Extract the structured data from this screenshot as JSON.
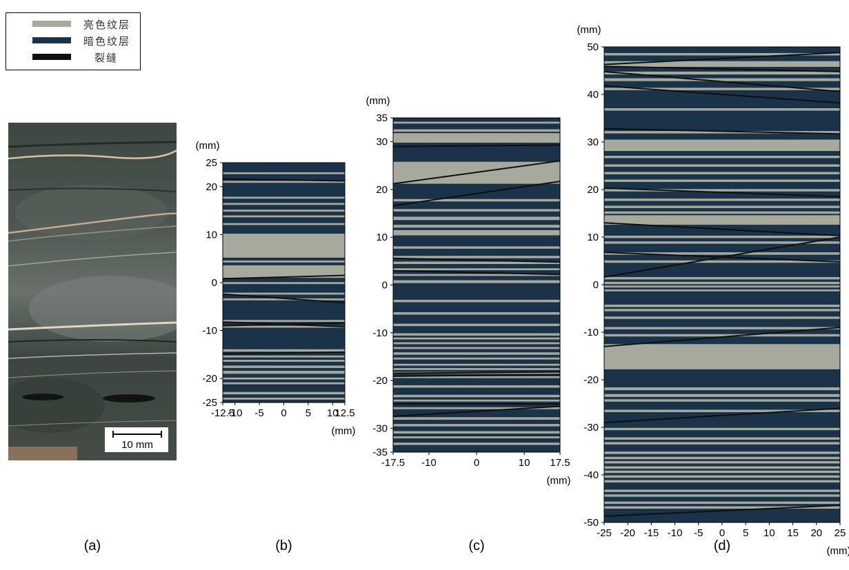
{
  "legend": {
    "items": [
      {
        "label": "亮色纹层",
        "color": "#a8a99d"
      },
      {
        "label": "暗色纹层",
        "color": "#1b3349"
      },
      {
        "label": "裂缝",
        "color": "#0f0f0f"
      }
    ]
  },
  "photo": {
    "scale_label": "10 mm"
  },
  "panels": [
    {
      "id": "b",
      "caption": "(b)",
      "unit_y": "(mm)",
      "unit_x": "(mm)",
      "x_range": [
        -12.5,
        12.5
      ],
      "y_range": [
        -25,
        25
      ],
      "x_ticks": [
        "-12.5",
        "-10",
        "-5",
        "0",
        "5",
        "10",
        "12.5"
      ],
      "x_tick_values": [
        -12.5,
        -10,
        -5,
        0,
        5,
        10,
        12.5
      ],
      "y_ticks": [
        "25",
        "20",
        "10",
        "0",
        "-10",
        "-20",
        "-25"
      ],
      "y_tick_values": [
        25,
        20,
        10,
        0,
        -10,
        -20,
        -25
      ],
      "light_bands": [
        [
          22.6,
          23
        ],
        [
          20.8,
          21.2
        ],
        [
          17.5,
          17.9
        ],
        [
          16.2,
          16.6
        ],
        [
          14.8,
          15.2
        ],
        [
          13.6,
          14
        ],
        [
          12,
          12.4
        ],
        [
          5.2,
          10.2
        ],
        [
          4.2,
          4.6
        ],
        [
          1,
          3.6
        ],
        [
          -0.3,
          0.1
        ],
        [
          -2.5,
          -2.1
        ],
        [
          -3.7,
          -3.3
        ],
        [
          -8.2,
          -7.8
        ],
        [
          -9.4,
          -9
        ],
        [
          -14.4,
          -13.9
        ],
        [
          -15.6,
          -15.2
        ],
        [
          -16.5,
          -16.1
        ],
        [
          -17.8,
          -17.3
        ],
        [
          -19,
          -18.4
        ],
        [
          -20.2,
          -19.8
        ],
        [
          -21.2,
          -20.8
        ],
        [
          -23.3,
          -22.8
        ],
        [
          -24.4,
          -24
        ]
      ],
      "cracks": [
        [
          21.6,
          21.2
        ],
        [
          0.8,
          1.5
        ],
        [
          -2.4,
          -4.2
        ],
        [
          -8.2,
          -9.2
        ],
        [
          -9,
          -8.4
        ],
        [
          -14.8,
          -14.5
        ]
      ]
    },
    {
      "id": "c",
      "caption": "(c)",
      "unit_y": "(mm)",
      "unit_x": "(mm)",
      "x_range": [
        -17.5,
        17.5
      ],
      "y_range": [
        -35,
        35
      ],
      "x_ticks": [
        "-17.5",
        "-10",
        "0",
        "10",
        "17.5"
      ],
      "x_tick_values": [
        -17.5,
        -10,
        0,
        10,
        17.5
      ],
      "y_ticks": [
        "35",
        "30",
        "20",
        "10",
        "0",
        "-10",
        "-20",
        "-30",
        "-35"
      ],
      "y_tick_values": [
        35,
        30,
        20,
        10,
        0,
        -10,
        -20,
        -30,
        -35
      ],
      "light_bands": [
        [
          33.8,
          34.2
        ],
        [
          32.1,
          32.6
        ],
        [
          29.8,
          31.8
        ],
        [
          21.2,
          25.8
        ],
        [
          17.5,
          18
        ],
        [
          15.4,
          15.9
        ],
        [
          13.6,
          14.3
        ],
        [
          12,
          12.6
        ],
        [
          10.4,
          11.5
        ],
        [
          7.6,
          8.1
        ],
        [
          5.6,
          6.1
        ],
        [
          4.4,
          4.9
        ],
        [
          3.1,
          3.5
        ],
        [
          1.9,
          2.3
        ],
        [
          0.4,
          1
        ],
        [
          -3.6,
          -3.1
        ],
        [
          -6.2,
          -5.7
        ],
        [
          -8.6,
          -8.1
        ],
        [
          -10.6,
          -10.1
        ],
        [
          -11.4,
          -11
        ],
        [
          -12.4,
          -12
        ],
        [
          -13.4,
          -13
        ],
        [
          -14.6,
          -14.1
        ],
        [
          -15.6,
          -15.2
        ],
        [
          -16.9,
          -16.5
        ],
        [
          -17.8,
          -17.4
        ],
        [
          -18.6,
          -18.2
        ],
        [
          -19.5,
          -19.1
        ],
        [
          -21.5,
          -21
        ],
        [
          -23.5,
          -23
        ],
        [
          -24.4,
          -24
        ],
        [
          -26,
          -25.6
        ],
        [
          -28.2,
          -27.7
        ],
        [
          -29.6,
          -29.1
        ],
        [
          -31.1,
          -30.6
        ],
        [
          -32.1,
          -31.7
        ],
        [
          -33.5,
          -33
        ]
      ],
      "cracks": [
        [
          29,
          29.3
        ],
        [
          21.2,
          26
        ],
        [
          16.6,
          21.7
        ],
        [
          5.6,
          4.8
        ],
        [
          3,
          2.2
        ],
        [
          -18.5,
          -18.2
        ],
        [
          -19.1,
          -18.8
        ],
        [
          -24.9,
          -24.9
        ],
        [
          -27.5,
          -25.4
        ]
      ]
    },
    {
      "id": "d",
      "caption": "(d)",
      "unit_y": "(mm)",
      "unit_x": "(mm)",
      "x_range": [
        -25,
        25
      ],
      "y_range": [
        -50,
        50
      ],
      "x_ticks": [
        "-25",
        "-20",
        "-15",
        "-10",
        "-5",
        "0",
        "5",
        "10",
        "15",
        "20",
        "25"
      ],
      "x_tick_values": [
        -25,
        -20,
        -15,
        -10,
        -5,
        0,
        5,
        10,
        15,
        20,
        25
      ],
      "y_ticks": [
        "50",
        "40",
        "30",
        "20",
        "10",
        "0",
        "-10",
        "-20",
        "-30",
        "-40",
        "-50"
      ],
      "y_tick_values": [
        50,
        40,
        30,
        20,
        10,
        0,
        -10,
        -20,
        -30,
        -40,
        -50
      ],
      "light_bands": [
        [
          48.2,
          48.7
        ],
        [
          45.8,
          47
        ],
        [
          44.2,
          44.8
        ],
        [
          42.8,
          43.4
        ],
        [
          40.9,
          41.4
        ],
        [
          36.6,
          37.1
        ],
        [
          31.8,
          32.3
        ],
        [
          28.1,
          30.5
        ],
        [
          26.6,
          27.1
        ],
        [
          24.8,
          25.3
        ],
        [
          23.2,
          23.7
        ],
        [
          21.6,
          22.1
        ],
        [
          19.6,
          20.1
        ],
        [
          17.6,
          18.1
        ],
        [
          16.1,
          16.6
        ],
        [
          14.9,
          15.4
        ],
        [
          12.6,
          14.6
        ],
        [
          9.8,
          10.3
        ],
        [
          8.6,
          9.1
        ],
        [
          6.3,
          6.8
        ],
        [
          4.6,
          5.1
        ],
        [
          1.1,
          1.6
        ],
        [
          0.1,
          0.6
        ],
        [
          -0.6,
          -0.2
        ],
        [
          -1.4,
          -1
        ],
        [
          -4.7,
          -4.2
        ],
        [
          -5.6,
          -5.1
        ],
        [
          -7.2,
          -6.7
        ],
        [
          -9.4,
          -8.9
        ],
        [
          -10.9,
          -10.4
        ],
        [
          -12.5,
          -17.8
        ],
        [
          -22.2,
          -21.6
        ],
        [
          -23.6,
          -23
        ],
        [
          -24.6,
          -24.1
        ],
        [
          -26.8,
          -26.3
        ],
        [
          -30.6,
          -30.1
        ],
        [
          -32.6,
          -32.1
        ],
        [
          -33.6,
          -33.1
        ],
        [
          -35.6,
          -35.1
        ],
        [
          -36.7,
          -36.2
        ],
        [
          -37.6,
          -37.1
        ],
        [
          -38.7,
          -38.2
        ],
        [
          -39.6,
          -39.1
        ],
        [
          -40.6,
          -40.1
        ],
        [
          -41.6,
          -41.1
        ],
        [
          -43.6,
          -43.1
        ],
        [
          -44.6,
          -44.1
        ],
        [
          -46.1,
          -45.6
        ],
        [
          -47.1,
          -46.6
        ]
      ],
      "cracks": [
        [
          46.3,
          48.8
        ],
        [
          45.9,
          44.8
        ],
        [
          44.8,
          40.6
        ],
        [
          41.8,
          38.2
        ],
        [
          32.8,
          31.7
        ],
        [
          20.3,
          18.5
        ],
        [
          13,
          10.3
        ],
        [
          6.8,
          4.8
        ],
        [
          1.6,
          10
        ],
        [
          -13,
          -9
        ],
        [
          -29,
          -26
        ],
        [
          -48.7,
          -46.4
        ]
      ]
    }
  ],
  "photo_caption": "(a)"
}
